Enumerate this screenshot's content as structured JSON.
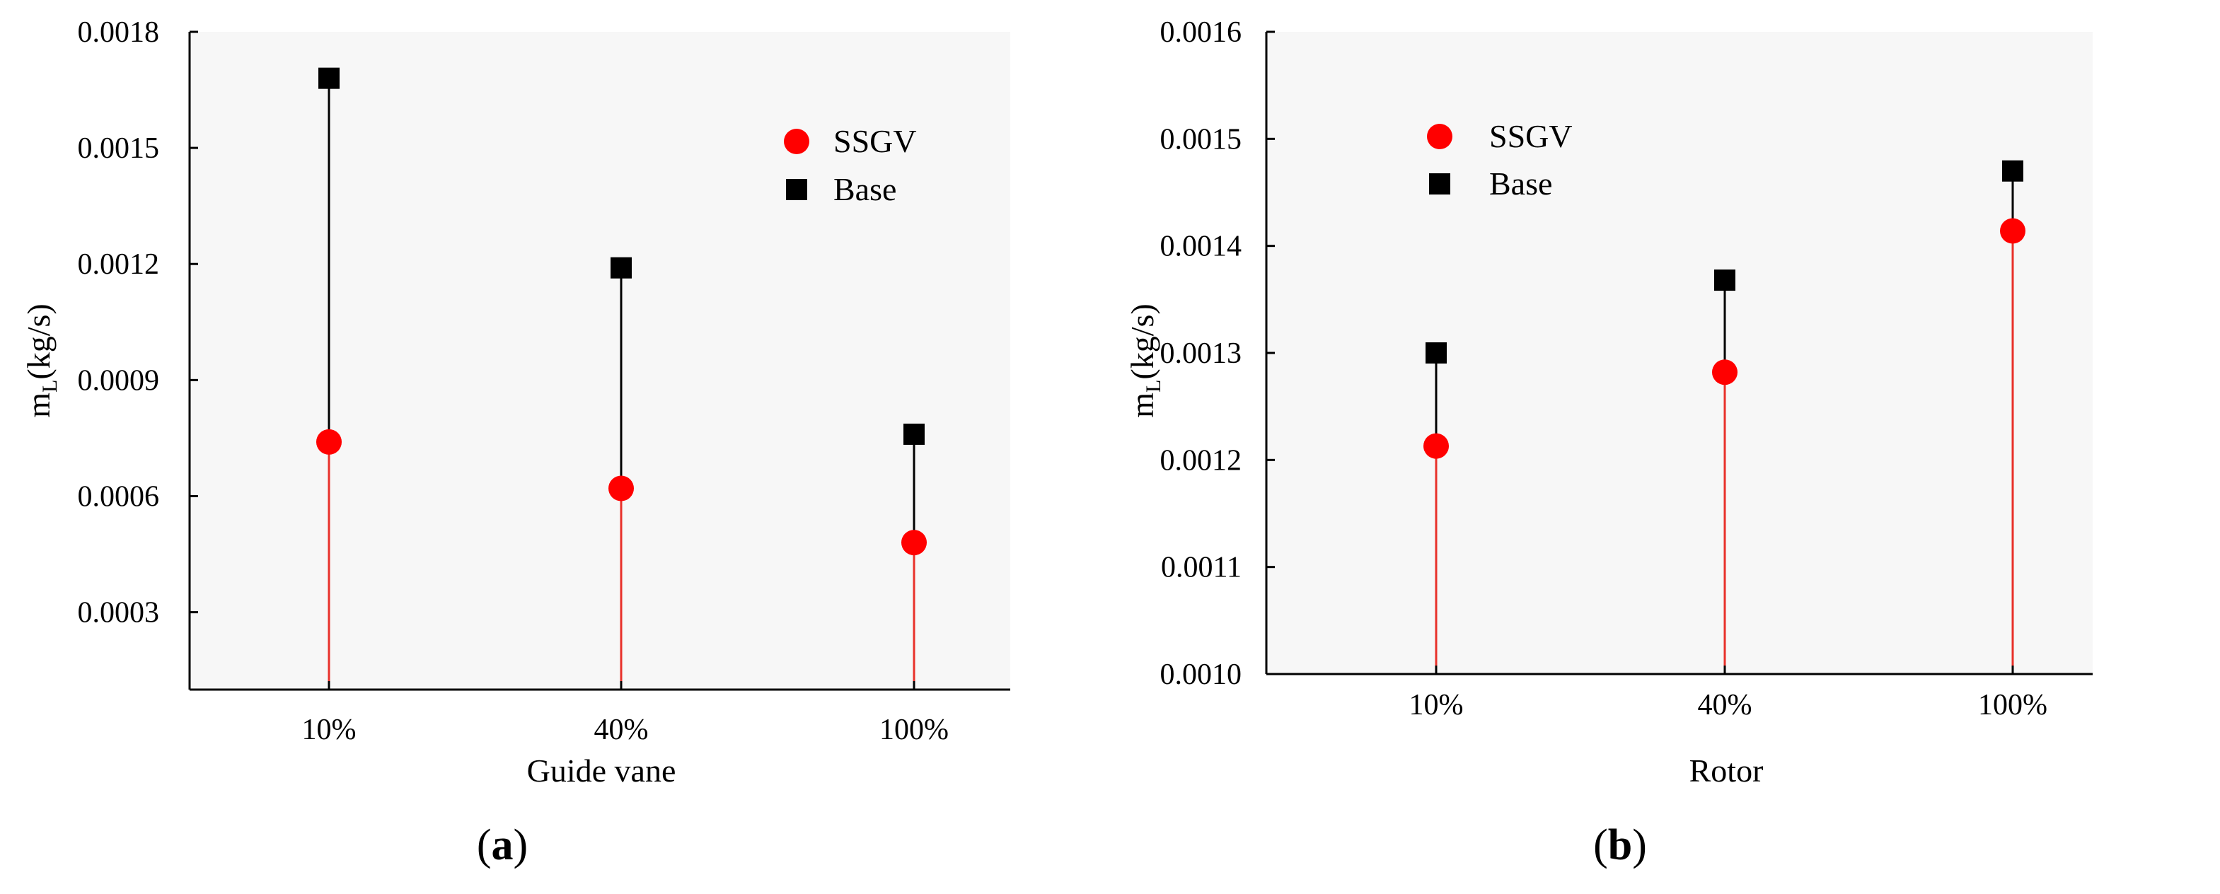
{
  "colors": {
    "ssgv": "#ff0000",
    "base": "#000000",
    "stem_ssgv": "#e8312a",
    "stem_base": "#000000",
    "axis": "#000000",
    "plot_bg": "#f7f7f7"
  },
  "chart_data": [
    {
      "type": "scatter",
      "panel": "(a)",
      "panel_parts": {
        "open": "(",
        "letter": "a",
        "close": ")"
      },
      "categories": [
        "10%",
        "40%",
        "100%"
      ],
      "xlabel": "Guide vane",
      "ylabel": "m",
      "ylabel_sub": "L",
      "ylabel_unit": "(kg/s)",
      "ylim": [
        0.0001,
        0.0018
      ],
      "yticks": [
        0.0003,
        0.0006,
        0.0009,
        0.0012,
        0.0015,
        0.0018
      ],
      "ytick_labels": [
        "0.0003",
        "0.0006",
        "0.0009",
        "0.0012",
        "0.0015",
        "0.0018"
      ],
      "legend": [
        {
          "label": "SSGV",
          "marker": "circle"
        },
        {
          "label": "Base",
          "marker": "square"
        }
      ],
      "legend_position": "top-right",
      "series": [
        {
          "name": "SSGV",
          "values": [
            0.00074,
            0.00062,
            0.00048
          ]
        },
        {
          "name": "Base",
          "values": [
            0.00168,
            0.00119,
            0.00076
          ]
        }
      ]
    },
    {
      "type": "scatter",
      "panel": "(b)",
      "panel_parts": {
        "open": "(",
        "letter": "b",
        "close": ")"
      },
      "categories": [
        "10%",
        "40%",
        "100%"
      ],
      "xlabel": "Rotor",
      "ylabel": "m",
      "ylabel_sub": "L",
      "ylabel_unit": "(kg/s)",
      "ylim": [
        0.001,
        0.0016
      ],
      "yticks": [
        0.001,
        0.0011,
        0.0012,
        0.0013,
        0.0014,
        0.0015,
        0.0016
      ],
      "ytick_labels": [
        "0.0010",
        "0.0011",
        "0.0012",
        "0.0013",
        "0.0014",
        "0.0015",
        "0.0016"
      ],
      "legend": [
        {
          "label": "SSGV",
          "marker": "circle"
        },
        {
          "label": "Base",
          "marker": "square"
        }
      ],
      "legend_position": "top-left",
      "series": [
        {
          "name": "SSGV",
          "values": [
            0.001213,
            0.001282,
            0.001414
          ]
        },
        {
          "name": "Base",
          "values": [
            0.0013,
            0.001368,
            0.00147
          ]
        }
      ]
    }
  ]
}
